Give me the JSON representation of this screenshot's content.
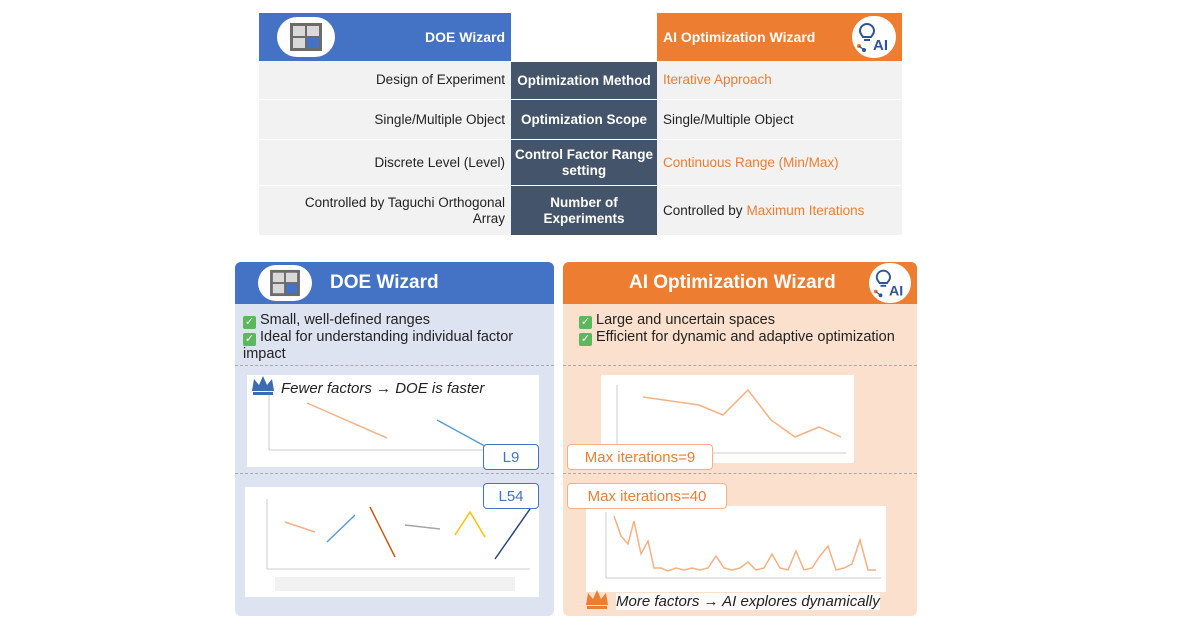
{
  "table": {
    "doe_title": "DOE Wizard",
    "ai_title": "AI Optimization Wizard",
    "rows": [
      {
        "left": "Design of Experiment",
        "mid": "Optimization Method",
        "right": "",
        "right_highlight": "Iterative Approach"
      },
      {
        "left": "Single/Multiple Object",
        "mid": "Optimization Scope",
        "right": "Single/Multiple Object",
        "right_highlight": ""
      },
      {
        "left": "Discrete Level (Level)",
        "mid": "Control Factor Range setting",
        "right": "",
        "right_highlight": "Continuous Range (Min/Max)"
      },
      {
        "left": "Controlled by Taguchi Orthogonal Array",
        "mid": "Number of Experiments",
        "right": "Controlled by",
        "right_highlight": "Maximum Iterations"
      }
    ]
  },
  "doe_panel": {
    "title": "DOE Wizard",
    "bullet1": "Small, well-defined ranges",
    "bullet2": "Ideal for understanding individual factor impact",
    "caption": "Fewer factors → DOE is faster",
    "tag1": "L9",
    "tag2": "L54"
  },
  "ai_panel": {
    "title": "AI Optimization Wizard",
    "bullet1": "Large and uncertain spaces",
    "bullet2": "Efficient for dynamic and adaptive optimization",
    "tag1": "Max iterations=9",
    "tag2": "Max iterations=40",
    "caption": "More factors → AI explores dynamically"
  },
  "icons": {
    "doe_logo": "grid-window-icon",
    "ai_logo": "lightbulb-ai-icon",
    "check": "check-icon",
    "crown": "crown-icon",
    "ai_logo_text": "AI"
  },
  "colors": {
    "doe_blue": "#4472c4",
    "ai_orange": "#ed7d31",
    "mid_slate": "#44546a",
    "check_green": "#5cb85c"
  }
}
